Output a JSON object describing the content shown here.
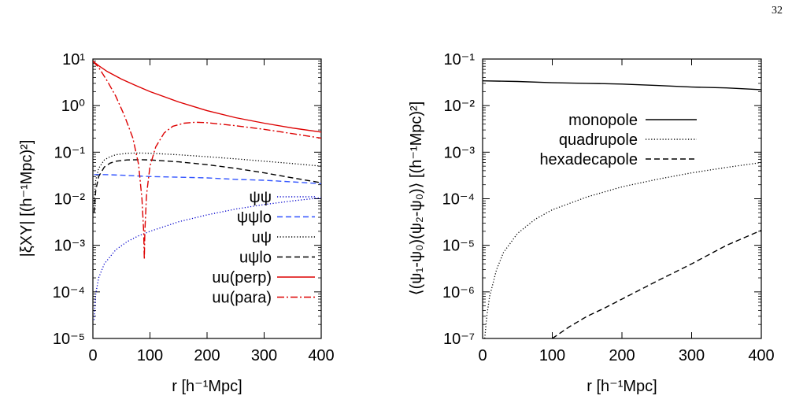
{
  "page_number": "32",
  "chart_data": [
    {
      "type": "line",
      "xlabel": "r [h⁻¹Mpc]",
      "ylabel": "|ξXY| [(h⁻¹Mpc)²]",
      "xlim": [
        0,
        400
      ],
      "ylim": [
        1e-05,
        10
      ],
      "yscale": "log",
      "x_ticks": [
        "0",
        "100",
        "200",
        "300",
        "400"
      ],
      "y_ticks": [
        "10⁻⁵",
        "10⁻⁴",
        "10⁻³",
        "10⁻²",
        "10⁻¹",
        "10⁰",
        "10¹"
      ],
      "grid": false,
      "legend_position": "bottom-right",
      "series": [
        {
          "name": "ψψ",
          "color": "#0000cc",
          "style": "dotted",
          "x": [
            2,
            5,
            10,
            20,
            40,
            60,
            80,
            100,
            150,
            200,
            250,
            300,
            350,
            400
          ],
          "y": [
            2.5e-05,
            9e-05,
            0.0002,
            0.0004,
            0.0008,
            0.0012,
            0.0016,
            0.002,
            0.0032,
            0.0045,
            0.006,
            0.0075,
            0.009,
            0.0105
          ]
        },
        {
          "name": "ψψlo",
          "color": "#3355ff",
          "style": "dashed",
          "x": [
            2,
            10,
            20,
            50,
            100,
            150,
            200,
            250,
            300,
            350,
            400
          ],
          "y": [
            0.033,
            0.033,
            0.033,
            0.032,
            0.03,
            0.029,
            0.028,
            0.026,
            0.025,
            0.023,
            0.021
          ]
        },
        {
          "name": "uψ",
          "color": "#000000",
          "style": "dotted",
          "x": [
            2,
            5,
            10,
            20,
            30,
            40,
            60,
            80,
            100,
            150,
            200,
            250,
            300,
            350,
            400
          ],
          "y": [
            0.009,
            0.025,
            0.045,
            0.068,
            0.08,
            0.088,
            0.095,
            0.096,
            0.095,
            0.088,
            0.08,
            0.072,
            0.064,
            0.057,
            0.05
          ]
        },
        {
          "name": "uψlo",
          "color": "#000000",
          "style": "dashed",
          "x": [
            2,
            5,
            10,
            20,
            30,
            40,
            60,
            80,
            100,
            150,
            200,
            250,
            300,
            350,
            400
          ],
          "y": [
            0.005,
            0.015,
            0.03,
            0.048,
            0.058,
            0.064,
            0.068,
            0.069,
            0.068,
            0.062,
            0.054,
            0.045,
            0.036,
            0.028,
            0.022
          ]
        },
        {
          "name": "uu(perp)",
          "color": "#dd0000",
          "style": "solid",
          "x": [
            0,
            10,
            25,
            50,
            75,
            100,
            125,
            150,
            200,
            250,
            300,
            350,
            400
          ],
          "y": [
            9.0,
            7.2,
            5.4,
            3.7,
            2.7,
            2.0,
            1.55,
            1.2,
            0.78,
            0.55,
            0.42,
            0.33,
            0.27
          ]
        },
        {
          "name": "uu(para)",
          "color": "#dd0000",
          "style": "dashdot",
          "x": [
            0,
            10,
            25,
            40,
            55,
            70,
            80,
            86,
            89,
            90,
            91,
            94,
            100,
            110,
            125,
            140,
            160,
            180,
            200,
            250,
            300,
            350,
            400
          ],
          "y": [
            9.0,
            6.6,
            3.4,
            1.6,
            0.62,
            0.2,
            0.055,
            0.01,
            0.002,
            0.0005,
            0.002,
            0.012,
            0.05,
            0.13,
            0.26,
            0.36,
            0.42,
            0.44,
            0.43,
            0.37,
            0.31,
            0.25,
            0.2
          ]
        }
      ]
    },
    {
      "type": "line",
      "xlabel": "r [h⁻¹Mpc]",
      "ylabel": "⟨(ψ₁-ψ₀)(ψ₂-ψ₀)⟩   [(h⁻¹Mpc)²]",
      "xlim": [
        0,
        400
      ],
      "ylim": [
        1e-07,
        0.1
      ],
      "yscale": "log",
      "x_ticks": [
        "0",
        "100",
        "200",
        "300",
        "400"
      ],
      "y_ticks": [
        "10⁻⁷",
        "10⁻⁶",
        "10⁻⁵",
        "10⁻⁴",
        "10⁻³",
        "10⁻²",
        "10⁻¹"
      ],
      "grid": false,
      "legend_position": "top-right",
      "series": [
        {
          "name": "monopole",
          "color": "#000000",
          "style": "solid",
          "x": [
            0,
            50,
            100,
            150,
            200,
            250,
            300,
            350,
            400
          ],
          "y": [
            0.034,
            0.033,
            0.031,
            0.03,
            0.029,
            0.027,
            0.025,
            0.024,
            0.022
          ]
        },
        {
          "name": "quadrupole",
          "color": "#000000",
          "style": "dotted",
          "x": [
            3,
            6,
            10,
            20,
            30,
            50,
            75,
            100,
            150,
            200,
            250,
            300,
            350,
            400
          ],
          "y": [
            1e-07,
            3e-07,
            8e-07,
            3e-06,
            7e-06,
            1.8e-05,
            3.6e-05,
            5.8e-05,
            0.00011,
            0.00018,
            0.00026,
            0.00036,
            0.00047,
            0.0006
          ]
        },
        {
          "name": "hexadecapole",
          "color": "#000000",
          "style": "dashed",
          "x": [
            100,
            125,
            150,
            175,
            200,
            250,
            300,
            350,
            400
          ],
          "y": [
            1e-07,
            1.8e-07,
            3e-07,
            4.5e-07,
            7e-07,
            1.7e-06,
            4e-06,
            1e-05,
            2.1e-05
          ]
        }
      ]
    }
  ]
}
